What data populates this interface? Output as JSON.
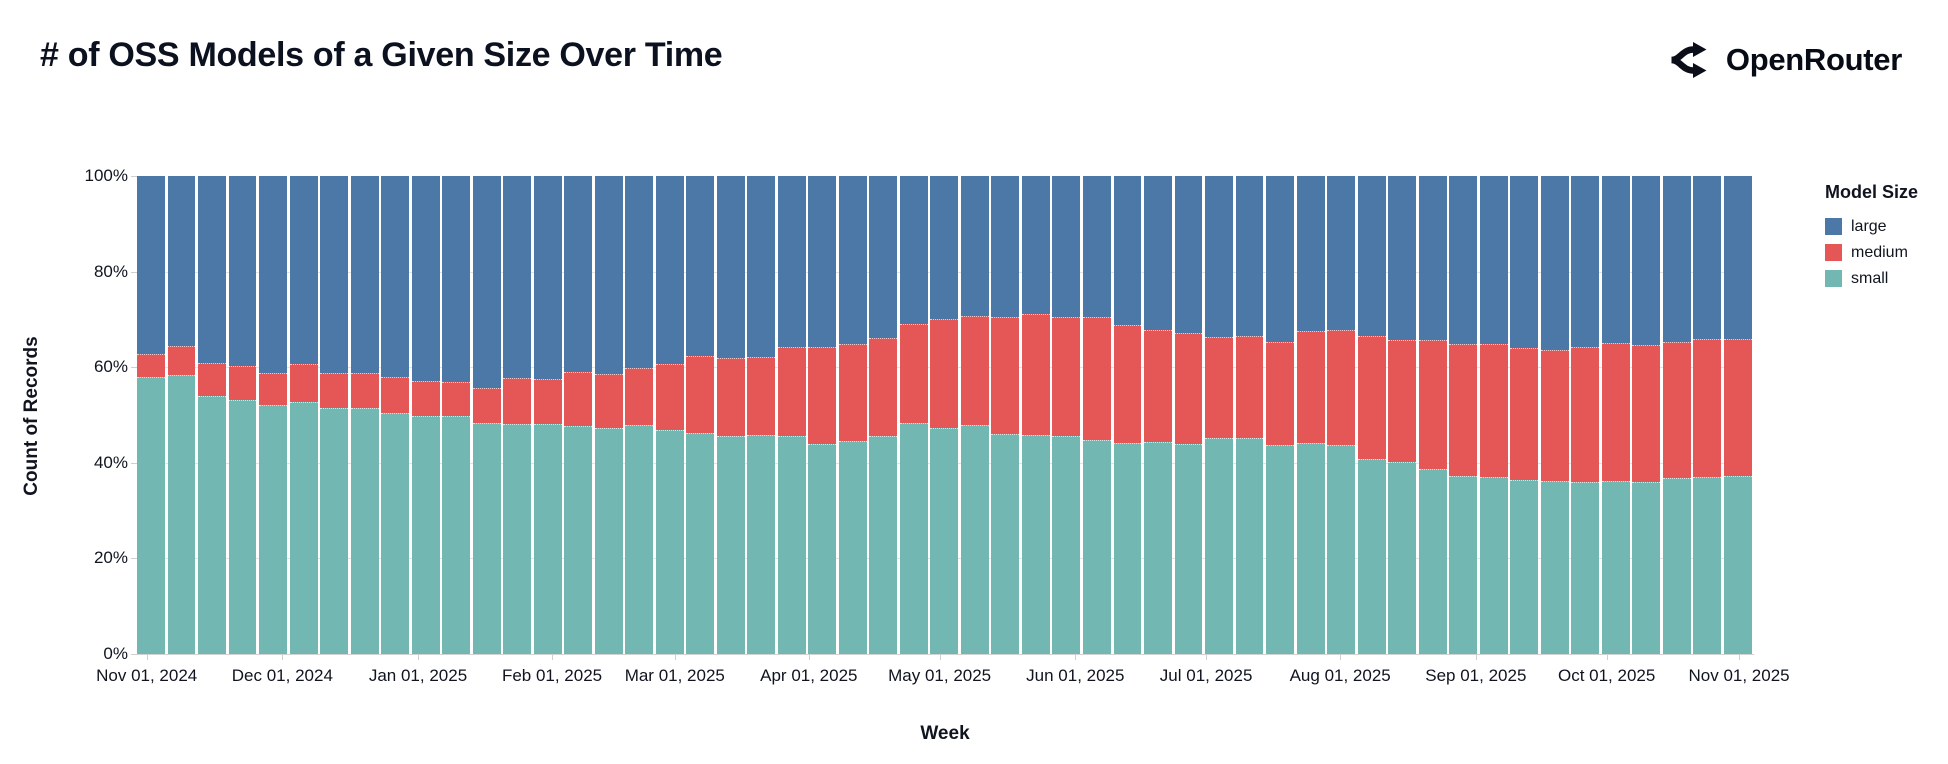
{
  "header": {
    "brand": "OpenRouter"
  },
  "chart_data": {
    "type": "bar",
    "subtype": "stacked-100-percent",
    "title": "# of OSS Models of a Given Size Over Time",
    "xlabel": "Week",
    "ylabel": "Count of Records",
    "n_bars": 53,
    "x_unit": "week (Nov 01, 2024 through Nov 01, 2025)",
    "ylim": [
      0,
      100
    ],
    "grid": "horizontal, light gray at 20% steps",
    "legend": {
      "title": "Model Size",
      "position": "right",
      "entries": [
        {
          "label": "large",
          "color": "#4c78a8"
        },
        {
          "label": "medium",
          "color": "#e45756"
        },
        {
          "label": "small",
          "color": "#72b7b2"
        }
      ]
    },
    "y_ticks": [
      {
        "label": "100%",
        "value": 100
      },
      {
        "label": "80%",
        "value": 80
      },
      {
        "label": "60%",
        "value": 60
      },
      {
        "label": "40%",
        "value": 40
      },
      {
        "label": "20%",
        "value": 20
      },
      {
        "label": "0%",
        "value": 0
      }
    ],
    "x_ticks": [
      {
        "label": "Nov 01, 2024",
        "pos": 0.006
      },
      {
        "label": "Dec 01, 2024",
        "pos": 0.09
      },
      {
        "label": "Jan 01, 2025",
        "pos": 0.174
      },
      {
        "label": "Feb 01, 2025",
        "pos": 0.257
      },
      {
        "label": "Mar 01, 2025",
        "pos": 0.333
      },
      {
        "label": "Apr 01, 2025",
        "pos": 0.416
      },
      {
        "label": "May 01, 2025",
        "pos": 0.497
      },
      {
        "label": "Jun 01, 2025",
        "pos": 0.581
      },
      {
        "label": "Jul 01, 2025",
        "pos": 0.662
      },
      {
        "label": "Aug 01, 2025",
        "pos": 0.745
      },
      {
        "label": "Sep 01, 2025",
        "pos": 0.829
      },
      {
        "label": "Oct 01, 2025",
        "pos": 0.91
      },
      {
        "label": "Nov 01, 2025",
        "pos": 0.992
      }
    ],
    "series": [
      {
        "name": "large",
        "color": "#4c78a8",
        "values": [
          37.2,
          35.6,
          39.1,
          39.8,
          41.3,
          39.4,
          41.2,
          41.2,
          42.1,
          42.9,
          43.0,
          44.4,
          42.2,
          42.4,
          40.9,
          41.5,
          40.2,
          39.3,
          37.7,
          38.1,
          37.8,
          35.8,
          35.8,
          35.1,
          33.8,
          31.0,
          30.0,
          29.3,
          29.6,
          28.9,
          29.4,
          29.6,
          31.1,
          32.2,
          32.8,
          33.7,
          33.5,
          34.7,
          32.4,
          32.3,
          33.5,
          34.4,
          34.4,
          35.2,
          35.1,
          35.9,
          36.5,
          35.8,
          34.9,
          35.4,
          34.7,
          34.0,
          34.2
        ]
      },
      {
        "name": "medium",
        "color": "#e45756",
        "values": [
          4.8,
          6.0,
          6.9,
          7.1,
          6.6,
          7.8,
          7.3,
          7.3,
          7.4,
          7.3,
          7.2,
          7.2,
          9.6,
          9.4,
          11.3,
          11.3,
          11.9,
          13.9,
          16.0,
          16.3,
          16.4,
          18.7,
          20.2,
          20.3,
          20.5,
          20.6,
          22.7,
          22.8,
          24.3,
          25.2,
          25.0,
          25.7,
          24.8,
          23.5,
          23.2,
          21.2,
          21.4,
          21.5,
          23.4,
          23.9,
          25.8,
          25.5,
          27.0,
          27.5,
          27.8,
          27.7,
          27.3,
          28.2,
          28.9,
          28.6,
          28.4,
          28.9,
          28.6
        ]
      },
      {
        "name": "small",
        "color": "#72b7b2",
        "values": [
          58.0,
          58.4,
          54.0,
          53.1,
          52.1,
          52.8,
          51.5,
          51.5,
          50.5,
          49.8,
          49.8,
          48.4,
          48.2,
          48.2,
          47.8,
          47.2,
          47.9,
          46.8,
          46.3,
          45.6,
          45.8,
          45.5,
          44.0,
          44.6,
          45.7,
          48.4,
          47.3,
          47.9,
          46.1,
          45.9,
          45.6,
          44.7,
          44.1,
          44.3,
          44.0,
          45.1,
          45.1,
          43.8,
          44.2,
          43.8,
          40.7,
          40.1,
          38.6,
          37.3,
          37.1,
          36.4,
          36.2,
          36.0,
          36.2,
          36.0,
          36.9,
          37.1,
          37.2
        ]
      }
    ]
  }
}
